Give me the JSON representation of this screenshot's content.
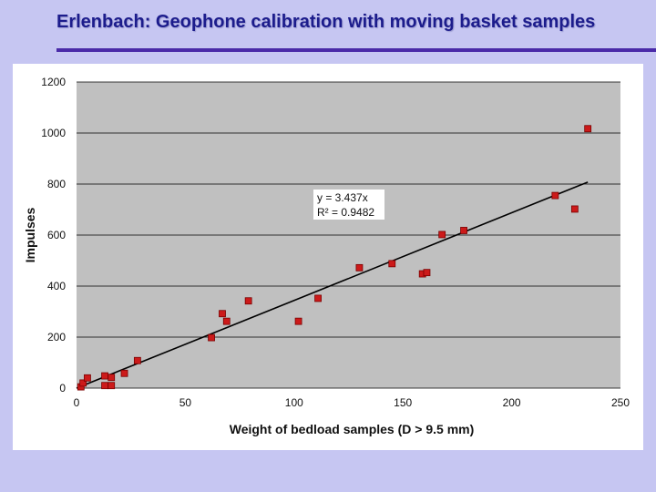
{
  "slide": {
    "title": "Erlenbach: Geophone calibration with moving basket samples"
  },
  "colors": {
    "background": "#c6c6f2",
    "title": "#1c1c8c",
    "rule": "#4a2aa8",
    "plot_area": "#c0c0c0",
    "marker_fill": "#cc1a1a",
    "marker_edge": "#7a0000",
    "trendline": "#000000"
  },
  "chart_data": {
    "type": "scatter",
    "title": "",
    "xlabel": "Weight  of  bedload samples (D > 9.5 mm)",
    "ylabel": "Impulses",
    "xlim": [
      0,
      250
    ],
    "ylim": [
      0,
      1200
    ],
    "xticks": [
      0,
      50,
      100,
      150,
      200,
      250
    ],
    "yticks": [
      0,
      200,
      400,
      600,
      800,
      1000,
      1200
    ],
    "grid": "horizontal",
    "legend": "none",
    "trendline": {
      "equation": "y = 3.437x",
      "r_squared": "R² = 0.9482",
      "slope": 3.437
    },
    "series": [
      {
        "x": [
          2,
          3,
          5,
          13,
          13,
          16,
          16,
          22,
          28,
          62,
          67,
          69,
          79,
          102,
          111,
          130,
          145,
          159,
          161,
          168,
          178,
          220,
          229,
          235
        ],
        "y": [
          5,
          20,
          40,
          10,
          48,
          10,
          42,
          58,
          108,
          198,
          292,
          262,
          342,
          262,
          352,
          472,
          488,
          448,
          453,
          602,
          618,
          755,
          702,
          1017
        ]
      }
    ]
  }
}
